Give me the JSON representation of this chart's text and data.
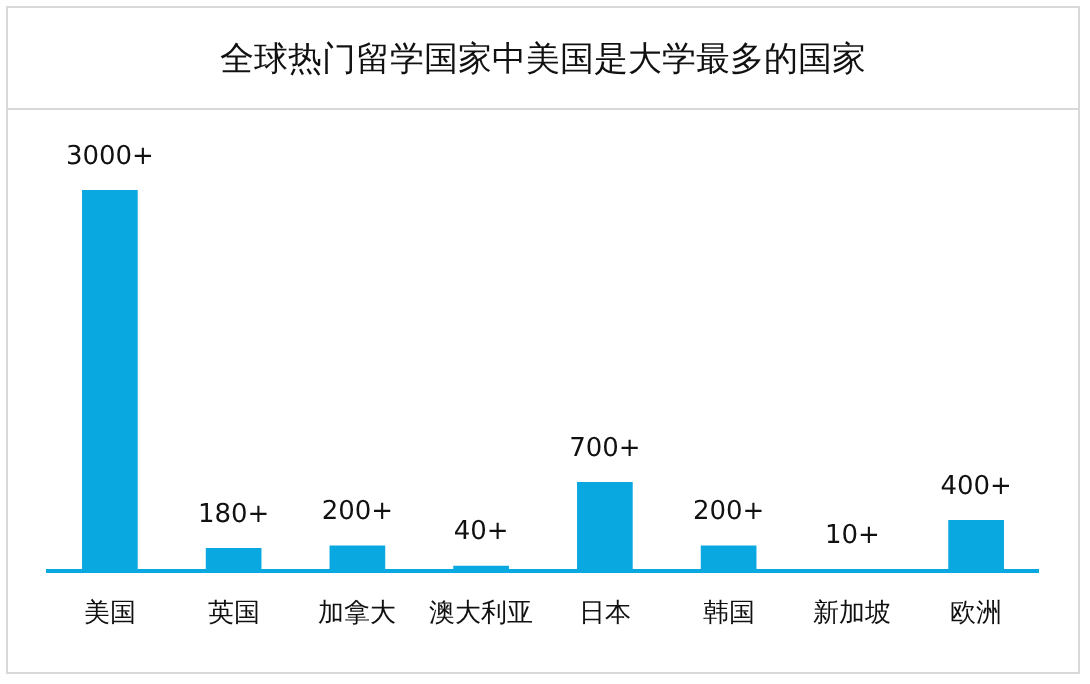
{
  "chart_data": {
    "type": "bar",
    "title": "全球热门留学国家中美国是大学最多的国家",
    "categories": [
      "美国",
      "英国",
      "加拿大",
      "澳大利亚",
      "日本",
      "韩国",
      "新加坡",
      "欧洲"
    ],
    "values": [
      3000,
      180,
      200,
      40,
      700,
      200,
      10,
      400
    ],
    "value_labels": [
      "3000+",
      "180+",
      "200+",
      "40+",
      "700+",
      "200+",
      "10+",
      "400+"
    ],
    "color": "#0aa8e0",
    "grid": false,
    "legend": false
  }
}
